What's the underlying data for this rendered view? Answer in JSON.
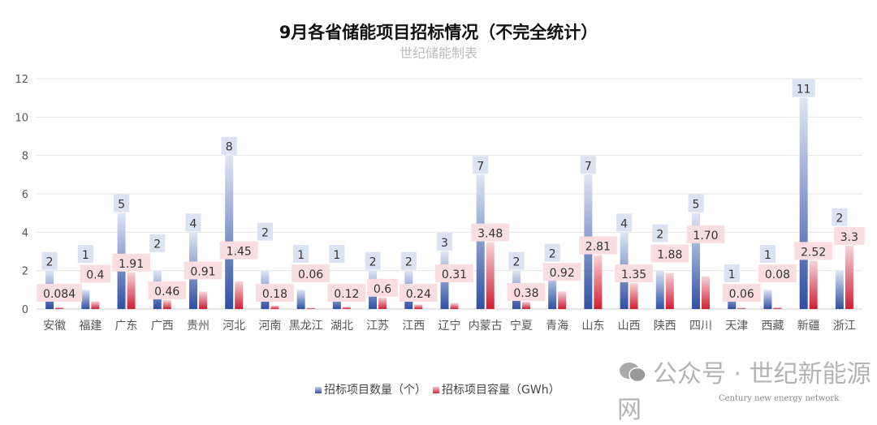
{
  "chart_data": {
    "type": "bar",
    "title": "9月各省储能项目招标情况（不完全统计）",
    "subtitle": "世纪储能制表",
    "categories": [
      "安徽",
      "福建",
      "广东",
      "广西",
      "贵州",
      "河北",
      "河南",
      "黑龙江",
      "湖北",
      "江苏",
      "江西",
      "辽宁",
      "内蒙古",
      "宁夏",
      "青海",
      "山东",
      "山西",
      "陕西",
      "四川",
      "天津",
      "西藏",
      "新疆",
      "浙江"
    ],
    "series": [
      {
        "name": "招标项目数量（个）",
        "color": "#3355a8",
        "labels": [
          "2",
          "1",
          "5",
          "2",
          "4",
          "8",
          "2",
          "1",
          "1",
          "2",
          "2",
          "3",
          "7",
          "2",
          "2",
          "7",
          "4",
          "2",
          "5",
          "1",
          "1",
          "11",
          "2"
        ],
        "values": [
          2,
          1,
          5,
          2,
          4,
          8,
          2,
          1,
          1,
          2,
          2,
          3,
          7,
          2,
          2,
          7,
          4,
          2,
          5,
          1,
          1,
          11,
          2
        ]
      },
      {
        "name": "招标项目容量（GWh）",
        "color": "#d22a3c",
        "labels": [
          "0.084",
          "0.4",
          "1.91",
          "0.46",
          "0.91",
          "1.45",
          "0.18",
          "0.06",
          "0.12",
          "0.6",
          "0.24",
          "0.31",
          "3.48",
          "0.38",
          "0.92",
          "2.81",
          "1.35",
          "1.88",
          "1.70",
          "0.06",
          "0.08",
          "2.52",
          "3.3"
        ],
        "values": [
          0.084,
          0.4,
          1.91,
          0.46,
          0.91,
          1.45,
          0.18,
          0.06,
          0.12,
          0.6,
          0.24,
          0.31,
          3.48,
          0.38,
          0.92,
          2.81,
          1.35,
          1.88,
          1.7,
          0.06,
          0.08,
          2.52,
          3.3
        ]
      }
    ],
    "yticks": [
      "0",
      "2",
      "4",
      "6",
      "8",
      "10",
      "12"
    ],
    "ylim": [
      0,
      12
    ],
    "grid": true,
    "legend": "bottom"
  },
  "watermark": {
    "text": "公众号 · 世纪新能源网",
    "en": "Century new energy network"
  }
}
